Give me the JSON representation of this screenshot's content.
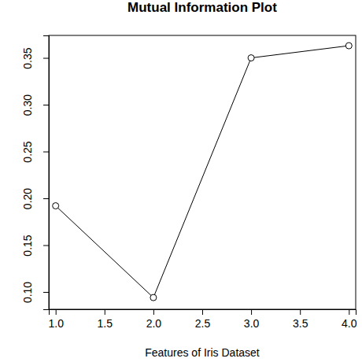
{
  "chart_data": {
    "type": "line",
    "title": "Mutual Information Plot",
    "x_label": "Features of Iris Dataset",
    "x": [
      1,
      2,
      3,
      4
    ],
    "values": [
      0.192,
      0.094,
      0.35,
      0.363
    ],
    "color": "#000000",
    "marker": "open-circle",
    "xlim": [
      0.93,
      4.07
    ],
    "ylim": [
      0.0815,
      0.374
    ],
    "xticks": [
      {
        "value": 1,
        "label": "1.0"
      },
      {
        "value": 1.5,
        "label": "1.5"
      },
      {
        "value": 2,
        "label": "2.0"
      },
      {
        "value": 2.5,
        "label": "2.5"
      },
      {
        "value": 3,
        "label": "3.0"
      },
      {
        "value": 3.5,
        "label": "3.5"
      },
      {
        "value": 4,
        "label": "4.0"
      }
    ],
    "yticks": [
      {
        "value": 0.1,
        "label": "0.10"
      },
      {
        "value": 0.15,
        "label": "0.15"
      },
      {
        "value": 0.2,
        "label": "0.20"
      },
      {
        "value": 0.25,
        "label": "0.25"
      },
      {
        "value": 0.3,
        "label": "0.30"
      },
      {
        "value": 0.35,
        "label": "0.35"
      }
    ]
  }
}
